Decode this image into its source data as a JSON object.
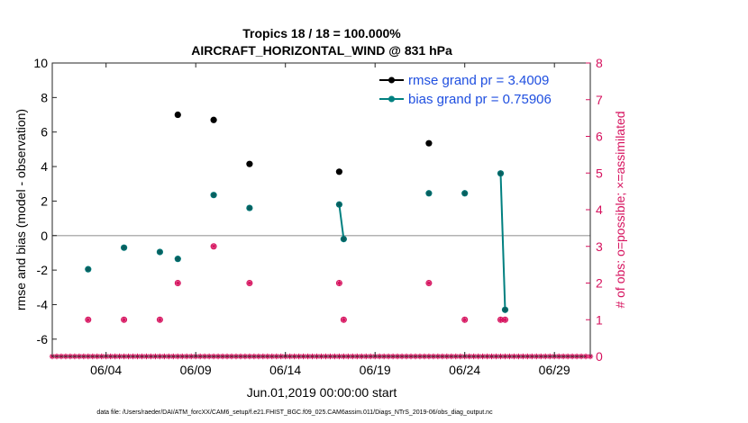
{
  "chart_data": {
    "type": "scatter",
    "title_line1": "Tropics 18 / 18 = 100.000%",
    "title_line2": "AIRCRAFT_HORIZONTAL_WIND @ 831 hPa",
    "xlabel": "Jun.01,2019 00:00:00 start",
    "ylabel_left": "rmse and bias (model - observation)",
    "ylabel_right": "# of obs: o=possible; ×=assimilated",
    "footer": "data file: /Users/raeder/DAI/ATM_forcXX/CAM6_setup/f.e21.FHIST_BGC.f09_025.CAM6assim.011/Diags_NTrS_2019-06/obs_diag_output.nc",
    "xlim": [
      "2019-06-01",
      "2019-07-01"
    ],
    "ylim_left": [
      -7,
      10
    ],
    "ylim_right": [
      0,
      8
    ],
    "left_ticks": [
      "10",
      "8",
      "6",
      "4",
      "2",
      "0",
      "-2",
      "-4",
      "-6"
    ],
    "right_ticks": [
      "8",
      "7",
      "6",
      "5",
      "4",
      "3",
      "2",
      "1",
      "0"
    ],
    "x_ticks": [
      "06/04",
      "06/09",
      "06/14",
      "06/19",
      "06/24",
      "06/29"
    ],
    "x_tick_dates": [
      "2019-06-04",
      "2019-06-09",
      "2019-06-14",
      "2019-06-19",
      "2019-06-24",
      "2019-06-29"
    ],
    "zero_line": 0,
    "colors": {
      "rmse": "#000000",
      "bias": "#008080",
      "obs": "#d6125e",
      "zero": "#b3b3b3",
      "legend_text": "#1f4fe0"
    },
    "series": [
      {
        "name": "rmse grand pr = 3.4009",
        "key": "rmse",
        "points": [
          [
            "2019-06-08",
            7.0
          ],
          [
            "2019-06-10",
            6.7
          ],
          [
            "2019-06-12",
            4.15
          ],
          [
            "2019-06-17",
            3.7
          ],
          [
            "2019-06-22",
            5.35
          ]
        ]
      },
      {
        "name": "bias grand pr = 0.75906",
        "key": "bias",
        "points": [
          [
            "2019-06-03",
            -1.95
          ],
          [
            "2019-06-05",
            -0.7
          ],
          [
            "2019-06-07",
            -0.95
          ],
          [
            "2019-06-08",
            -1.35
          ],
          [
            "2019-06-10",
            2.35
          ],
          [
            "2019-06-12",
            1.6
          ],
          [
            "2019-06-17",
            1.8
          ],
          [
            "2019-06-17 06:00",
            -0.2
          ],
          [
            "2019-06-22",
            2.45
          ],
          [
            "2019-06-24",
            2.45
          ],
          [
            "2019-06-26",
            3.6
          ],
          [
            "2019-06-26 06:00",
            -4.3
          ]
        ],
        "line_segments": [
          [
            6,
            7
          ],
          [
            10,
            11
          ]
        ]
      }
    ],
    "obs_counts": [
      [
        "2019-06-03",
        1
      ],
      [
        "2019-06-05",
        1
      ],
      [
        "2019-06-07",
        1
      ],
      [
        "2019-06-08",
        2
      ],
      [
        "2019-06-10",
        3
      ],
      [
        "2019-06-12",
        2
      ],
      [
        "2019-06-17",
        2
      ],
      [
        "2019-06-17 06:00",
        1
      ],
      [
        "2019-06-22",
        2
      ],
      [
        "2019-06-24",
        1
      ],
      [
        "2019-06-26",
        1
      ],
      [
        "2019-06-26 06:00",
        1
      ]
    ],
    "obs_zero_count": 0,
    "obs_zero_period": "6 hours"
  }
}
